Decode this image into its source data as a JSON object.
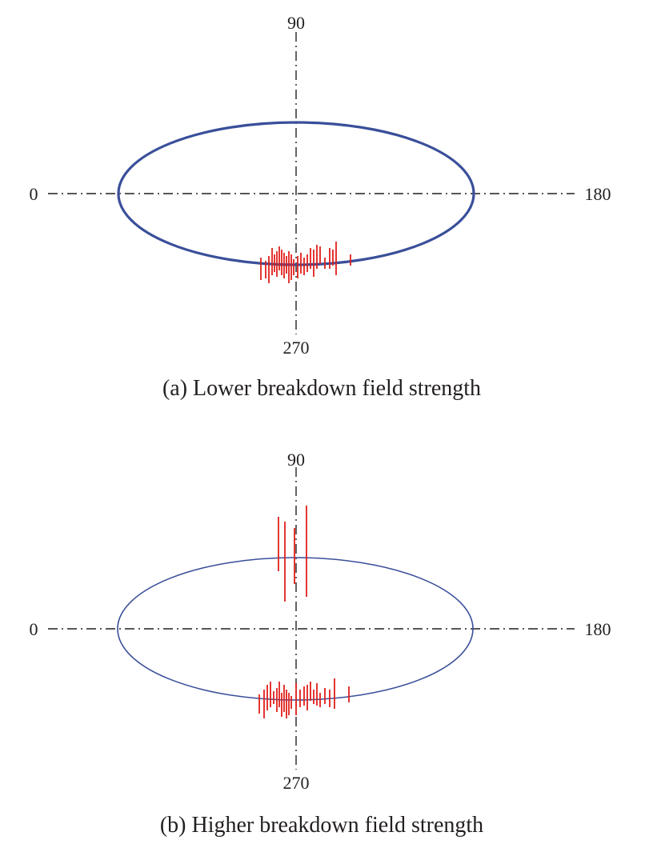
{
  "panels": [
    {
      "labels": {
        "top": "90",
        "left": "0",
        "right": "180",
        "bottom": "270"
      },
      "caption": "(a) Lower breakdown field strength",
      "colors": {
        "ellipse": "#3a4f9a",
        "discharge": "#e0201b",
        "axis": "#231f20"
      }
    },
    {
      "labels": {
        "top": "90",
        "left": "0",
        "right": "180",
        "bottom": "270"
      },
      "caption": "(b) Higher breakdown field strength",
      "colors": {
        "ellipse": "#3a4f9a",
        "discharge": "#e0201b",
        "axis": "#231f20"
      }
    }
  ]
}
